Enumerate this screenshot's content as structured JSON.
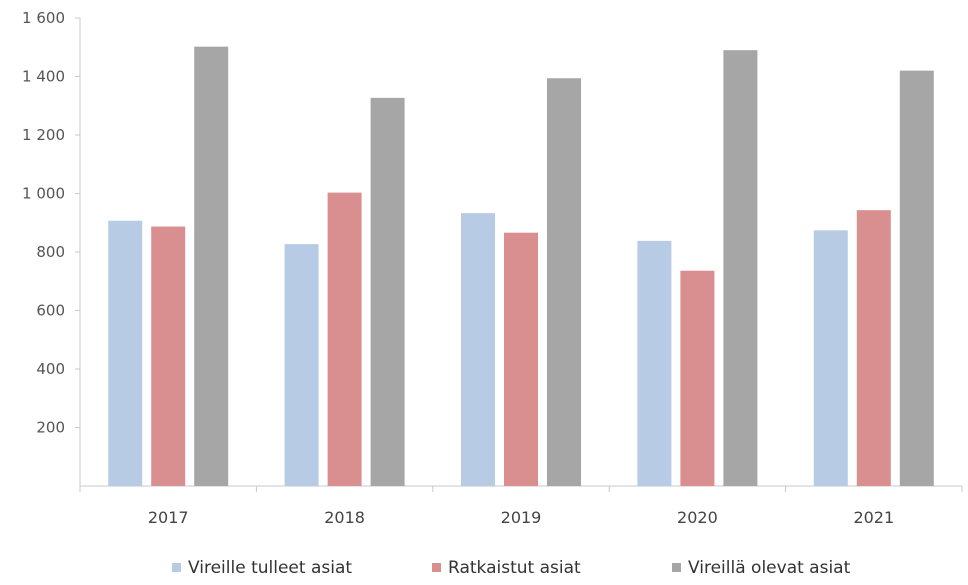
{
  "chart_data": {
    "type": "bar",
    "title": "",
    "xlabel": "",
    "ylabel": "",
    "categories": [
      "2017",
      "2018",
      "2019",
      "2020",
      "2021"
    ],
    "series": [
      {
        "name": "Vireille tulleet asiat",
        "color": "#b7cbe4",
        "values": [
          907,
          827,
          933,
          838,
          874
        ]
      },
      {
        "name": "Ratkaistut asiat",
        "color": "#d98f8f",
        "values": [
          887,
          1003,
          866,
          736,
          943
        ]
      },
      {
        "name": "Vireillä olevat asiat",
        "color": "#a6a6a6",
        "values": [
          1502,
          1327,
          1394,
          1490,
          1420
        ]
      }
    ],
    "ylim": [
      0,
      1600
    ],
    "yticks": [
      200,
      400,
      600,
      800,
      1000,
      1200,
      1400,
      1600
    ],
    "ytick_labels": [
      "200",
      "400",
      "600",
      "800",
      "1 000",
      "1 200",
      "1 400",
      "1 600"
    ],
    "grid": false,
    "legend_position": "bottom"
  }
}
